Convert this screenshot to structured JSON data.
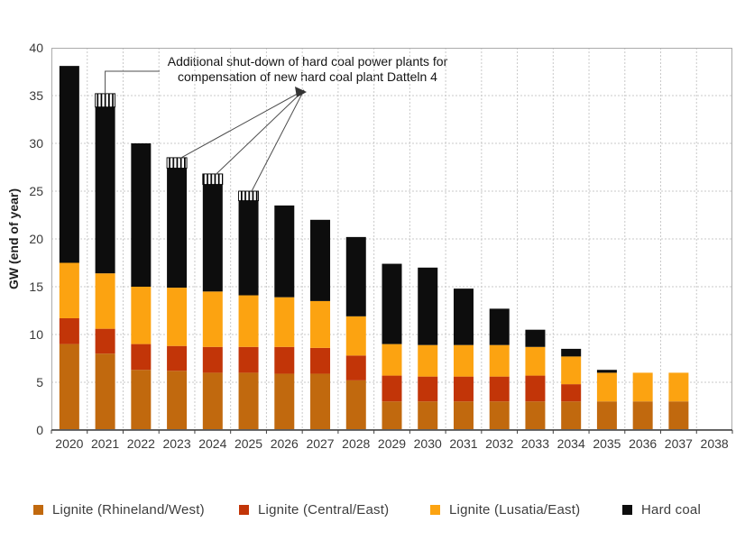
{
  "chart_data": {
    "type": "bar",
    "stacked": true,
    "ylabel": "GW (end of year)",
    "ylim": [
      0,
      40
    ],
    "ytick_step": 5,
    "grid": "dashed-both-axes",
    "legend_position": "bottom",
    "categories": [
      "2020",
      "2021",
      "2022",
      "2023",
      "2024",
      "2025",
      "2026",
      "2027",
      "2028",
      "2029",
      "2030",
      "2031",
      "2032",
      "2033",
      "2034",
      "2035",
      "2036",
      "2037",
      "2038"
    ],
    "series": [
      {
        "name": "Lignite (Rhineland/West)",
        "color": "#C1690E",
        "values": [
          9.0,
          8.0,
          6.3,
          6.2,
          6.0,
          6.0,
          5.9,
          5.9,
          5.2,
          3.0,
          3.0,
          3.0,
          3.0,
          3.0,
          3.0,
          3.0,
          3.0,
          3.0,
          0
        ]
      },
      {
        "name": "Lignite (Central/East)",
        "color": "#C23508",
        "values": [
          2.7,
          2.6,
          2.7,
          2.6,
          2.7,
          2.7,
          2.8,
          2.7,
          2.6,
          2.7,
          2.6,
          2.6,
          2.6,
          2.7,
          1.8,
          0,
          0,
          0,
          0
        ]
      },
      {
        "name": "Lignite (Lusatia/East)",
        "color": "#FCA311",
        "values": [
          5.8,
          5.8,
          6.0,
          6.1,
          5.8,
          5.4,
          5.2,
          4.9,
          4.1,
          3.3,
          3.3,
          3.3,
          3.3,
          3.0,
          2.9,
          3.0,
          3.0,
          3.0,
          0
        ]
      },
      {
        "name": "Hard coal",
        "color": "#0D0D0D",
        "values": [
          20.6,
          17.4,
          15.0,
          12.5,
          11.2,
          9.9,
          9.6,
          8.5,
          8.3,
          8.4,
          8.1,
          5.9,
          3.8,
          1.8,
          0.8,
          0.3,
          0,
          0,
          0
        ]
      }
    ],
    "hatched_series": {
      "name": "Additional shut-down of hard coal (hatched)",
      "pattern": "vertical-stripes-black-on-white",
      "values": [
        0,
        1.4,
        0,
        1.1,
        1.1,
        1.0,
        0,
        0,
        0,
        0,
        0,
        0,
        0,
        0,
        0,
        0,
        0,
        0,
        0
      ]
    },
    "bar_totals": [
      38.1,
      35.2,
      30.0,
      28.5,
      26.8,
      25.0,
      23.5,
      22.0,
      20.2,
      17.4,
      17.0,
      14.8,
      12.7,
      10.5,
      8.5,
      6.3,
      6.0,
      6.0,
      0
    ],
    "annotation": {
      "line1": "Additional shut-down of hard coal power plants for",
      "line2": "compensation of new hard coal plant Datteln 4",
      "elbow_target_year": "2021",
      "fan_target_years": [
        "2023",
        "2024",
        "2025"
      ]
    },
    "colors": {
      "grid": "#C9C9C9",
      "frame": "#ABABAB",
      "axis": "#404040",
      "connector": "#4D4D4D",
      "background": "#FFFFFF"
    }
  }
}
